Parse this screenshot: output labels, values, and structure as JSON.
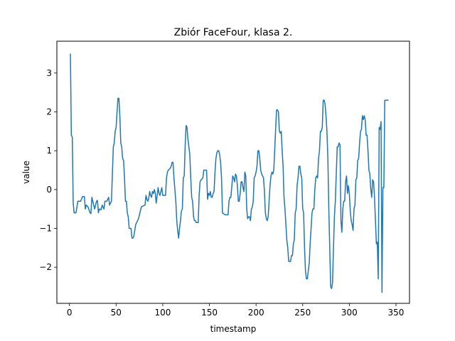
{
  "chart_data": {
    "type": "line",
    "title": "Zbiór FaceFour, klasa 2.",
    "xlabel": "timestamp",
    "ylabel": "value",
    "xlim": [
      -13.5,
      364.5
    ],
    "ylim": [
      -2.93,
      3.82
    ],
    "xticks": [
      0,
      50,
      100,
      150,
      200,
      250,
      300,
      350
    ],
    "yticks": [
      -2,
      -1,
      0,
      1,
      2,
      3
    ],
    "grid": false,
    "series": [
      {
        "color": "#1f77b4",
        "points": [
          [
            1,
            3.5
          ],
          [
            2,
            1.4
          ],
          [
            3,
            1.35
          ],
          [
            4,
            -0.35
          ],
          [
            5,
            -0.6
          ],
          [
            7,
            -0.6
          ],
          [
            9,
            -0.3
          ],
          [
            12,
            -0.3
          ],
          [
            14,
            -0.18
          ],
          [
            16,
            -0.18
          ],
          [
            17,
            -0.5
          ],
          [
            18,
            -0.4
          ],
          [
            20,
            -0.45
          ],
          [
            22,
            -0.6
          ],
          [
            23,
            -0.62
          ],
          [
            24,
            -0.2
          ],
          [
            25,
            -0.3
          ],
          [
            27,
            -0.5
          ],
          [
            29,
            -0.3
          ],
          [
            30,
            -0.28
          ],
          [
            31,
            -0.6
          ],
          [
            32,
            -0.5
          ],
          [
            34,
            -0.52
          ],
          [
            35,
            -0.4
          ],
          [
            37,
            -0.5
          ],
          [
            38,
            -0.3
          ],
          [
            40,
            -0.3
          ],
          [
            42,
            -0.2
          ],
          [
            43,
            -0.4
          ],
          [
            45,
            -0.3
          ],
          [
            46,
            0.4
          ],
          [
            47,
            1.1
          ],
          [
            48,
            1.2
          ],
          [
            49,
            1.5
          ],
          [
            50,
            1.6
          ],
          [
            51,
            2.0
          ],
          [
            52,
            2.35
          ],
          [
            53,
            2.35
          ],
          [
            54,
            1.9
          ],
          [
            55,
            1.2
          ],
          [
            56,
            1.1
          ],
          [
            57,
            0.8
          ],
          [
            58,
            0.75
          ],
          [
            59,
            0.3
          ],
          [
            60,
            -0.3
          ],
          [
            61,
            -0.3
          ],
          [
            62,
            -0.6
          ],
          [
            63,
            -0.7
          ],
          [
            64,
            -1.0
          ],
          [
            66,
            -1.0
          ],
          [
            67,
            -1.25
          ],
          [
            68,
            -1.25
          ],
          [
            69,
            -1.2
          ],
          [
            70,
            -1.05
          ],
          [
            71,
            -0.9
          ],
          [
            72,
            -0.85
          ],
          [
            74,
            -0.75
          ],
          [
            76,
            -0.55
          ],
          [
            77,
            -0.45
          ],
          [
            79,
            -0.42
          ],
          [
            81,
            -0.4
          ],
          [
            82,
            -0.15
          ],
          [
            83,
            -0.25
          ],
          [
            84,
            -0.3
          ],
          [
            85,
            -0.22
          ],
          [
            86,
            -0.05
          ],
          [
            87,
            -0.15
          ],
          [
            88,
            -0.2
          ],
          [
            89,
            -0.05
          ],
          [
            90,
            -0.1
          ],
          [
            91,
            0.0
          ],
          [
            92,
            -0.1
          ],
          [
            93,
            -0.35
          ],
          [
            94,
            -0.15
          ],
          [
            95,
            0.05
          ],
          [
            96,
            -0.1
          ],
          [
            97,
            -0.15
          ],
          [
            98,
            -0.05
          ],
          [
            99,
            0.05
          ],
          [
            100,
            -0.15
          ],
          [
            101,
            -0.15
          ],
          [
            103,
            -0.15
          ],
          [
            104,
            0.3
          ],
          [
            105,
            0.45
          ],
          [
            106,
            0.5
          ],
          [
            108,
            0.55
          ],
          [
            109,
            0.6
          ],
          [
            110,
            0.7
          ],
          [
            111,
            0.7
          ],
          [
            112,
            0.3
          ],
          [
            113,
            0.0
          ],
          [
            114,
            -0.3
          ],
          [
            115,
            -0.8
          ],
          [
            116,
            -1.05
          ],
          [
            117,
            -1.25
          ],
          [
            118,
            -1.0
          ],
          [
            119,
            -0.8
          ],
          [
            120,
            -0.55
          ],
          [
            121,
            -0.5
          ],
          [
            122,
            0.3
          ],
          [
            123,
            0.35
          ],
          [
            124,
            1.1
          ],
          [
            125,
            1.65
          ],
          [
            126,
            1.6
          ],
          [
            127,
            1.3
          ],
          [
            128,
            1.1
          ],
          [
            129,
            0.9
          ],
          [
            130,
            0.3
          ],
          [
            131,
            -0.2
          ],
          [
            132,
            -0.3
          ],
          [
            133,
            -0.7
          ],
          [
            134,
            -0.8
          ],
          [
            135,
            -0.8
          ],
          [
            136,
            -0.85
          ],
          [
            138,
            -0.85
          ],
          [
            139,
            -0.15
          ],
          [
            140,
            0.2
          ],
          [
            141,
            0.25
          ],
          [
            143,
            0.3
          ],
          [
            144,
            0.5
          ],
          [
            146,
            0.5
          ],
          [
            147,
            0.5
          ],
          [
            148,
            -0.25
          ],
          [
            149,
            -0.1
          ],
          [
            150,
            -0.15
          ],
          [
            151,
            -0.05
          ],
          [
            152,
            -0.2
          ],
          [
            153,
            -0.2
          ],
          [
            154,
            -0.1
          ],
          [
            155,
            -0.05
          ],
          [
            156,
            0.45
          ],
          [
            157,
            0.8
          ],
          [
            158,
            0.95
          ],
          [
            159,
            1.0
          ],
          [
            160,
            1.0
          ],
          [
            161,
            0.9
          ],
          [
            162,
            0.7
          ],
          [
            163,
            0.3
          ],
          [
            164,
            -0.6
          ],
          [
            165,
            -0.62
          ],
          [
            167,
            -0.65
          ],
          [
            170,
            -0.65
          ],
          [
            171,
            -0.3
          ],
          [
            172,
            -0.2
          ],
          [
            173,
            -0.2
          ],
          [
            175,
            0.35
          ],
          [
            176,
            0.3
          ],
          [
            177,
            0.2
          ],
          [
            178,
            0.4
          ],
          [
            179,
            0.35
          ],
          [
            180,
            0.1
          ],
          [
            181,
            -0.3
          ],
          [
            182,
            -0.3
          ],
          [
            183,
            -0.1
          ],
          [
            184,
            0.2
          ],
          [
            185,
            0.2
          ],
          [
            186,
            0.05
          ],
          [
            187,
            -0.05
          ],
          [
            188,
            0.45
          ],
          [
            189,
            0.35
          ],
          [
            190,
            -0.5
          ],
          [
            191,
            -0.75
          ],
          [
            192,
            -0.7
          ],
          [
            193,
            -0.7
          ],
          [
            194,
            -0.8
          ],
          [
            195,
            -0.5
          ],
          [
            196,
            -0.45
          ],
          [
            197,
            -0.3
          ],
          [
            198,
            0.3
          ],
          [
            199,
            0.35
          ],
          [
            200,
            0.45
          ],
          [
            201,
            0.6
          ],
          [
            202,
            1.0
          ],
          [
            203,
            1.0
          ],
          [
            204,
            0.8
          ],
          [
            205,
            0.5
          ],
          [
            206,
            0.4
          ],
          [
            207,
            0.35
          ],
          [
            208,
            0.3
          ],
          [
            209,
            -0.05
          ],
          [
            210,
            -0.6
          ],
          [
            211,
            -0.75
          ],
          [
            212,
            -0.8
          ],
          [
            213,
            -0.7
          ],
          [
            214,
            -0.3
          ],
          [
            215,
            0.1
          ],
          [
            216,
            0.35
          ],
          [
            217,
            0.45
          ],
          [
            218,
            0.4
          ],
          [
            219,
            0.5
          ],
          [
            220,
            1.0
          ],
          [
            221,
            1.55
          ],
          [
            222,
            2.05
          ],
          [
            223,
            2.05
          ],
          [
            224,
            2.0
          ],
          [
            225,
            1.5
          ],
          [
            226,
            1.45
          ],
          [
            227,
            1.5
          ],
          [
            228,
            1.0
          ],
          [
            229,
            0.6
          ],
          [
            230,
            -0.2
          ],
          [
            231,
            -0.5
          ],
          [
            232,
            -0.9
          ],
          [
            233,
            -1.3
          ],
          [
            234,
            -1.5
          ],
          [
            235,
            -1.85
          ],
          [
            236,
            -1.85
          ],
          [
            237,
            -1.85
          ],
          [
            238,
            -1.7
          ],
          [
            239,
            -1.7
          ],
          [
            240,
            -1.4
          ],
          [
            241,
            -1.3
          ],
          [
            242,
            -0.6
          ],
          [
            243,
            -0.5
          ],
          [
            244,
            0.1
          ],
          [
            245,
            0.3
          ],
          [
            246,
            0.6
          ],
          [
            247,
            0.6
          ],
          [
            248,
            0.4
          ],
          [
            249,
            0.3
          ],
          [
            250,
            -0.5
          ],
          [
            251,
            -0.6
          ],
          [
            252,
            -1.5
          ],
          [
            253,
            -2.1
          ],
          [
            254,
            -2.3
          ],
          [
            255,
            -2.3
          ],
          [
            256,
            -2.1
          ],
          [
            257,
            -1.9
          ],
          [
            258,
            -1.4
          ],
          [
            259,
            -1.0
          ],
          [
            260,
            -0.6
          ],
          [
            261,
            -0.5
          ],
          [
            262,
            -0.5
          ],
          [
            263,
            0.0
          ],
          [
            264,
            0.3
          ],
          [
            265,
            0.35
          ],
          [
            266,
            0.3
          ],
          [
            267,
            0.8
          ],
          [
            268,
            1.0
          ],
          [
            269,
            1.5
          ],
          [
            270,
            1.5
          ],
          [
            271,
            1.6
          ],
          [
            272,
            2.3
          ],
          [
            273,
            2.3
          ],
          [
            274,
            2.2
          ],
          [
            275,
            1.9
          ],
          [
            276,
            1.5
          ],
          [
            277,
            0.8
          ],
          [
            278,
            -0.5
          ],
          [
            279,
            -1.5
          ],
          [
            280,
            -2.5
          ],
          [
            281,
            -2.55
          ],
          [
            282,
            -2.4
          ],
          [
            283,
            -1.5
          ],
          [
            284,
            -0.7
          ],
          [
            285,
            -0.3
          ],
          [
            286,
            0.4
          ],
          [
            287,
            1.1
          ],
          [
            288,
            1.1
          ],
          [
            289,
            1.2
          ],
          [
            290,
            1.15
          ],
          [
            291,
            -0.8
          ],
          [
            292,
            -1.1
          ],
          [
            293,
            -0.5
          ],
          [
            294,
            -0.3
          ],
          [
            295,
            -0.3
          ],
          [
            296,
            0.2
          ],
          [
            297,
            0.35
          ],
          [
            298,
            -0.1
          ],
          [
            299,
            0.1
          ],
          [
            300,
            -0.1
          ],
          [
            301,
            -0.55
          ],
          [
            302,
            -0.8
          ],
          [
            303,
            -0.9
          ],
          [
            304,
            -1.05
          ],
          [
            305,
            -0.5
          ],
          [
            306,
            -0.4
          ],
          [
            307,
            0.25
          ],
          [
            308,
            0.3
          ],
          [
            309,
            0.75
          ],
          [
            310,
            0.8
          ],
          [
            311,
            1.2
          ],
          [
            312,
            1.5
          ],
          [
            313,
            1.55
          ],
          [
            314,
            1.9
          ],
          [
            315,
            1.8
          ],
          [
            316,
            1.9
          ],
          [
            317,
            1.8
          ],
          [
            318,
            1.4
          ],
          [
            319,
            1.4
          ],
          [
            320,
            1.0
          ],
          [
            321,
            0.5
          ],
          [
            322,
            0.4
          ],
          [
            323,
            0.0
          ],
          [
            324,
            -0.2
          ],
          [
            325,
            0.25
          ],
          [
            326,
            0.2
          ],
          [
            327,
            -0.2
          ],
          [
            328,
            -0.8
          ],
          [
            329,
            -1.4
          ],
          [
            330,
            -1.35
          ],
          [
            331,
            -2.3
          ],
          [
            332,
            1.6
          ],
          [
            333,
            1.55
          ],
          [
            334,
            1.75
          ],
          [
            335,
            -2.65
          ],
          [
            336,
            0.05
          ],
          [
            337,
            0.05
          ],
          [
            338,
            2.3
          ],
          [
            341,
            2.3
          ],
          [
            342,
            2.3
          ]
        ]
      }
    ]
  }
}
